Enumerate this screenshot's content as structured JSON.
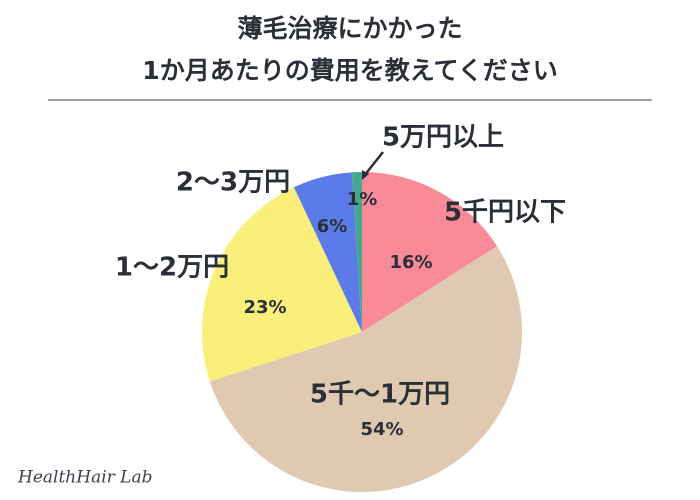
{
  "chart_data": {
    "type": "pie",
    "title": [
      "薄毛治療にかかった",
      "1か月あたりの費用を教えてください"
    ],
    "categories": [
      "5千円以下",
      "5千〜1万円",
      "1〜2万円",
      "2〜3万円",
      "5万円以上"
    ],
    "values": [
      16,
      54,
      23,
      6,
      1
    ],
    "value_labels": [
      "16%",
      "54%",
      "23%",
      "6%",
      "1%"
    ],
    "colors": [
      "#f98a98",
      "#dfc9b1",
      "#f9ef7a",
      "#5b7be9",
      "#45a88c"
    ],
    "watermark": "HealthHair Lab"
  }
}
